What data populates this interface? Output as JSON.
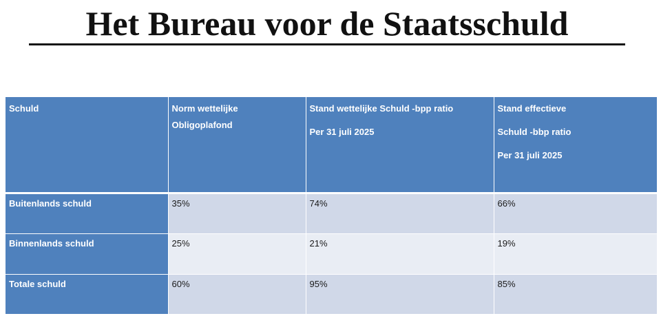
{
  "title": "Het Bureau voor de Staatsschuld",
  "table": {
    "headers": [
      {
        "lines": [
          "Schuld"
        ]
      },
      {
        "lines": [
          "Norm wettelijke",
          "Obligoplafond"
        ]
      },
      {
        "lines": [
          "Stand wettelijke Schuld -bpp ratio",
          "Per 31 juli 2025"
        ]
      },
      {
        "lines": [
          "Stand effectieve",
          "Schuld -bbp ratio",
          "Per 31 juli 2025"
        ]
      }
    ],
    "rows": [
      {
        "label": "Buitenlands schuld",
        "norm": "35%",
        "wettelijk": "74%",
        "effectief": "66%"
      },
      {
        "label": "Binnenlands schuld",
        "norm": "25%",
        "wettelijk": "21%",
        "effectief": "19%"
      },
      {
        "label": "Totale schuld",
        "norm": "60%",
        "wettelijk": "95%",
        "effectief": "85%"
      }
    ]
  },
  "colors": {
    "header_blue": "#4f81bd",
    "row_odd": "#d0d8e8",
    "row_even": "#e9edf4"
  }
}
